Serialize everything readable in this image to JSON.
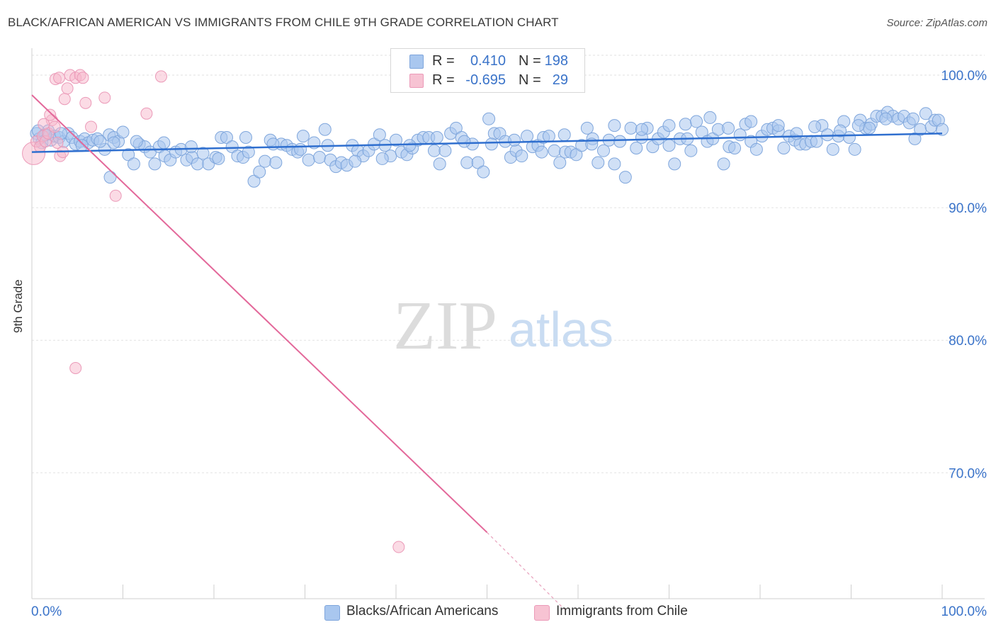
{
  "title": "BLACK/AFRICAN AMERICAN VS IMMIGRANTS FROM CHILE 9TH GRADE CORRELATION CHART",
  "source": "Source: ZipAtlas.com",
  "watermark": {
    "zip": "ZIP",
    "atlas": "atlas"
  },
  "colors": {
    "blue": "#3a73c9",
    "blue_fill": "#a9c7ef",
    "pink": "#e8739f",
    "pink_fill": "#f7b8cc",
    "grid": "#dddddd",
    "axis_label": "#3a73c9"
  },
  "legend": {
    "rows": [
      {
        "r_label": "R =",
        "r_value": "0.410",
        "n_label": "N =",
        "n_value": "198"
      },
      {
        "r_label": "R =",
        "r_value": "-0.695",
        "n_label": "N =",
        "n_value": "29"
      }
    ]
  },
  "bottom_legend": {
    "series1": "Blacks/African Americans",
    "series2": "Immigrants from Chile"
  },
  "chart_data": {
    "type": "scatter",
    "title": "BLACK/AFRICAN AMERICAN VS IMMIGRANTS FROM CHILE 9TH GRADE CORRELATION CHART",
    "xlabel": "",
    "ylabel": "9th Grade",
    "xlim": [
      0,
      100
    ],
    "ylim": [
      60.5,
      101.5
    ],
    "y_ticks": [
      70,
      80,
      90,
      100
    ],
    "y_tick_labels": [
      "70.0%",
      "80.0%",
      "90.0%",
      "100.0%"
    ],
    "x_tick_labels": [
      "0.0%",
      "100.0%"
    ],
    "grid": true,
    "series": [
      {
        "name": "Blacks/African Americans",
        "color": "#3a73c9",
        "trend": {
          "x": [
            0,
            100
          ],
          "y": [
            94.2,
            95.6
          ]
        },
        "points": [
          [
            0.5,
            95.6
          ],
          [
            0.8,
            95.2
          ],
          [
            1.1,
            94.9
          ],
          [
            1.4,
            95.5
          ],
          [
            1.8,
            95.8
          ],
          [
            2.1,
            95.1
          ],
          [
            2.5,
            95.4
          ],
          [
            3.0,
            95.3
          ],
          [
            3.5,
            95.0
          ],
          [
            4.0,
            95.6
          ],
          [
            4.4,
            95.3
          ],
          [
            4.8,
            94.8
          ],
          [
            5.3,
            95.0
          ],
          [
            5.8,
            95.2
          ],
          [
            6.2,
            94.9
          ],
          [
            6.7,
            95.1
          ],
          [
            7.2,
            95.2
          ],
          [
            8.0,
            94.4
          ],
          [
            8.5,
            95.5
          ],
          [
            9.0,
            95.3
          ],
          [
            9.5,
            95.0
          ],
          [
            10.0,
            95.7
          ],
          [
            10.6,
            94.0
          ],
          [
            11.2,
            93.3
          ],
          [
            11.8,
            94.8
          ],
          [
            12.4,
            94.6
          ],
          [
            13.0,
            94.2
          ],
          [
            13.5,
            93.3
          ],
          [
            14.0,
            94.6
          ],
          [
            14.6,
            93.9
          ],
          [
            15.2,
            93.6
          ],
          [
            15.8,
            94.2
          ],
          [
            16.4,
            94.4
          ],
          [
            17.0,
            93.6
          ],
          [
            17.6,
            93.8
          ],
          [
            18.2,
            93.3
          ],
          [
            18.8,
            94.1
          ],
          [
            19.4,
            93.3
          ],
          [
            20.2,
            93.8
          ],
          [
            20.8,
            95.3
          ],
          [
            21.4,
            95.3
          ],
          [
            22.0,
            94.6
          ],
          [
            22.6,
            93.9
          ],
          [
            23.2,
            93.8
          ],
          [
            23.8,
            94.2
          ],
          [
            24.4,
            92.0
          ],
          [
            25.0,
            92.7
          ],
          [
            25.6,
            93.5
          ],
          [
            26.2,
            95.1
          ],
          [
            26.8,
            93.4
          ],
          [
            27.4,
            94.8
          ],
          [
            28.0,
            94.7
          ],
          [
            28.6,
            94.4
          ],
          [
            29.2,
            94.2
          ],
          [
            29.8,
            95.4
          ],
          [
            30.4,
            93.6
          ],
          [
            31.0,
            94.9
          ],
          [
            31.6,
            93.8
          ],
          [
            32.2,
            95.9
          ],
          [
            32.8,
            93.6
          ],
          [
            33.4,
            93.1
          ],
          [
            34.0,
            93.4
          ],
          [
            34.6,
            93.2
          ],
          [
            35.2,
            94.7
          ],
          [
            35.8,
            94.3
          ],
          [
            36.4,
            93.9
          ],
          [
            37.0,
            94.3
          ],
          [
            37.6,
            94.8
          ],
          [
            38.2,
            95.5
          ],
          [
            38.8,
            94.7
          ],
          [
            39.4,
            93.9
          ],
          [
            40.0,
            95.1
          ],
          [
            40.6,
            94.2
          ],
          [
            41.2,
            94.0
          ],
          [
            41.8,
            94.5
          ],
          [
            42.4,
            95.1
          ],
          [
            43.0,
            95.3
          ],
          [
            43.6,
            95.3
          ],
          [
            44.2,
            94.3
          ],
          [
            44.8,
            93.3
          ],
          [
            45.4,
            94.3
          ],
          [
            46.0,
            95.6
          ],
          [
            46.6,
            96.0
          ],
          [
            47.2,
            95.3
          ],
          [
            47.8,
            93.4
          ],
          [
            48.4,
            94.8
          ],
          [
            49.0,
            93.4
          ],
          [
            49.6,
            92.7
          ],
          [
            50.2,
            96.7
          ],
          [
            50.8,
            95.6
          ],
          [
            51.4,
            95.6
          ],
          [
            52.0,
            95.0
          ],
          [
            52.6,
            93.8
          ],
          [
            53.2,
            94.3
          ],
          [
            53.8,
            93.9
          ],
          [
            54.4,
            95.4
          ],
          [
            55.0,
            94.6
          ],
          [
            55.6,
            94.7
          ],
          [
            56.2,
            95.3
          ],
          [
            56.8,
            95.4
          ],
          [
            57.4,
            94.3
          ],
          [
            58.0,
            93.4
          ],
          [
            58.6,
            94.2
          ],
          [
            59.2,
            94.2
          ],
          [
            59.8,
            94.0
          ],
          [
            60.4,
            94.7
          ],
          [
            61.0,
            96.0
          ],
          [
            61.6,
            95.2
          ],
          [
            62.2,
            93.4
          ],
          [
            62.8,
            94.3
          ],
          [
            63.4,
            95.1
          ],
          [
            64.0,
            93.3
          ],
          [
            64.6,
            95.0
          ],
          [
            65.2,
            92.3
          ],
          [
            65.8,
            96.0
          ],
          [
            66.4,
            94.5
          ],
          [
            67.0,
            95.3
          ],
          [
            67.6,
            96.0
          ],
          [
            68.2,
            94.6
          ],
          [
            68.8,
            95.2
          ],
          [
            69.4,
            95.7
          ],
          [
            70.0,
            94.7
          ],
          [
            70.6,
            93.3
          ],
          [
            71.2,
            95.2
          ],
          [
            71.8,
            96.3
          ],
          [
            72.4,
            94.3
          ],
          [
            73.0,
            96.5
          ],
          [
            73.6,
            95.7
          ],
          [
            74.2,
            95.0
          ],
          [
            74.8,
            95.2
          ],
          [
            75.4,
            95.9
          ],
          [
            76.0,
            93.3
          ],
          [
            76.6,
            94.6
          ],
          [
            77.2,
            94.5
          ],
          [
            77.8,
            95.5
          ],
          [
            78.4,
            96.3
          ],
          [
            79.0,
            95.0
          ],
          [
            79.6,
            94.4
          ],
          [
            80.2,
            95.4
          ],
          [
            80.8,
            95.9
          ],
          [
            81.4,
            96.0
          ],
          [
            82.0,
            95.8
          ],
          [
            82.6,
            94.5
          ],
          [
            83.2,
            95.4
          ],
          [
            83.8,
            95.1
          ],
          [
            84.4,
            94.8
          ],
          [
            85.0,
            94.8
          ],
          [
            85.6,
            95.0
          ],
          [
            86.2,
            95.0
          ],
          [
            86.8,
            96.2
          ],
          [
            87.4,
            95.5
          ],
          [
            88.0,
            94.4
          ],
          [
            88.6,
            95.4
          ],
          [
            89.2,
            96.5
          ],
          [
            89.8,
            95.3
          ],
          [
            90.4,
            94.4
          ],
          [
            91.0,
            96.6
          ],
          [
            91.6,
            96.0
          ],
          [
            92.2,
            96.3
          ],
          [
            92.8,
            96.9
          ],
          [
            93.4,
            96.9
          ],
          [
            94.0,
            97.2
          ],
          [
            94.6,
            96.9
          ],
          [
            95.2,
            96.7
          ],
          [
            95.8,
            96.9
          ],
          [
            96.4,
            96.4
          ],
          [
            97.0,
            95.2
          ],
          [
            97.6,
            95.9
          ],
          [
            98.2,
            97.1
          ],
          [
            98.8,
            96.1
          ],
          [
            99.2,
            96.6
          ],
          [
            99.6,
            96.6
          ],
          [
            100.0,
            95.9
          ],
          [
            96.8,
            96.7
          ],
          [
            93.8,
            96.7
          ],
          [
            92.0,
            96.0
          ],
          [
            90.8,
            96.2
          ],
          [
            88.8,
            95.8
          ],
          [
            86.0,
            96.1
          ],
          [
            84.0,
            95.6
          ],
          [
            82.0,
            96.2
          ],
          [
            79.0,
            96.5
          ],
          [
            76.5,
            96.0
          ],
          [
            74.5,
            96.8
          ],
          [
            72.0,
            95.2
          ],
          [
            70.0,
            96.2
          ],
          [
            67.0,
            95.9
          ],
          [
            64.0,
            96.2
          ],
          [
            61.5,
            94.8
          ],
          [
            58.5,
            95.5
          ],
          [
            56.0,
            94.2
          ],
          [
            53.0,
            95.1
          ],
          [
            50.5,
            94.8
          ],
          [
            47.5,
            95.0
          ],
          [
            44.5,
            95.3
          ],
          [
            41.5,
            94.7
          ],
          [
            38.5,
            93.7
          ],
          [
            35.5,
            93.5
          ],
          [
            32.5,
            94.7
          ],
          [
            29.5,
            94.4
          ],
          [
            26.5,
            94.8
          ],
          [
            23.5,
            95.3
          ],
          [
            20.5,
            93.7
          ],
          [
            17.5,
            94.6
          ],
          [
            14.5,
            94.9
          ],
          [
            11.5,
            95.0
          ],
          [
            9.0,
            94.9
          ],
          [
            7.5,
            95.0
          ],
          [
            5.5,
            94.7
          ],
          [
            3.2,
            95.6
          ],
          [
            1.5,
            95.5
          ],
          [
            0.7,
            95.8
          ],
          [
            8.6,
            92.3
          ]
        ]
      },
      {
        "name": "Immigrants from Chile",
        "color": "#e8739f",
        "trend": {
          "x": [
            0,
            50
          ],
          "y": [
            98.5,
            65.5
          ]
        },
        "trend_dashed": {
          "x": [
            50,
            58.5
          ],
          "y": [
            65.5,
            59.7
          ]
        },
        "points": [
          [
            0.2,
            94.1
          ],
          [
            0.5,
            95.0
          ],
          [
            0.9,
            94.6
          ],
          [
            1.2,
            95.4
          ],
          [
            1.5,
            95.0
          ],
          [
            1.8,
            95.6
          ],
          [
            2.2,
            96.6
          ],
          [
            2.5,
            96.1
          ],
          [
            2.8,
            94.9
          ],
          [
            3.1,
            93.9
          ],
          [
            3.4,
            94.2
          ],
          [
            2.0,
            97.0
          ],
          [
            2.6,
            99.7
          ],
          [
            3.0,
            99.8
          ],
          [
            3.6,
            98.2
          ],
          [
            3.9,
            99.0
          ],
          [
            4.2,
            100.0
          ],
          [
            4.8,
            99.8
          ],
          [
            5.3,
            100.0
          ],
          [
            5.6,
            99.8
          ],
          [
            5.9,
            97.9
          ],
          [
            6.5,
            96.1
          ],
          [
            8.0,
            98.3
          ],
          [
            9.2,
            90.9
          ],
          [
            12.6,
            97.1
          ],
          [
            14.2,
            99.9
          ],
          [
            4.8,
            77.9
          ],
          [
            40.3,
            64.4
          ],
          [
            1.3,
            96.3
          ]
        ]
      }
    ]
  }
}
